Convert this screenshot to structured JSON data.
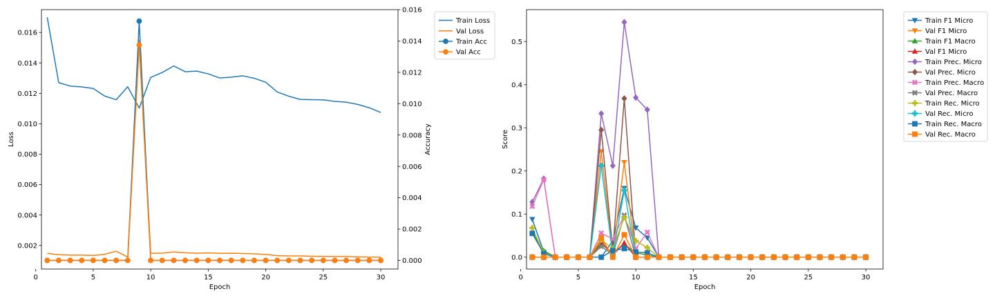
{
  "chart_data": [
    {
      "type": "line",
      "title": "",
      "xlabel": "Epoch",
      "ylabel": "Loss",
      "ylabel_right": "Accuracy",
      "x": [
        1,
        2,
        3,
        4,
        5,
        6,
        7,
        8,
        9,
        10,
        11,
        12,
        13,
        14,
        15,
        16,
        17,
        18,
        19,
        20,
        21,
        22,
        23,
        24,
        25,
        26,
        27,
        28,
        29,
        30
      ],
      "xlim": [
        0.5,
        31.5
      ],
      "ylim": [
        0.00045,
        0.0175
      ],
      "ylim_right": [
        -0.00055,
        0.016
      ],
      "xticks": [
        "0",
        "5",
        "10",
        "15",
        "20",
        "25",
        "30"
      ],
      "yticks_left": [
        "0.002",
        "0.004",
        "0.006",
        "0.008",
        "0.010",
        "0.012",
        "0.014",
        "0.016"
      ],
      "yticks_right": [
        "0.000",
        "0.002",
        "0.004",
        "0.006",
        "0.008",
        "0.010",
        "0.012",
        "0.014",
        "0.016"
      ],
      "grid": false,
      "legend_position": "outside-upper-right",
      "series": [
        {
          "name": "Train Loss",
          "axis": "left",
          "color": "#1f77b4",
          "marker": "none",
          "values": [
            0.017,
            0.0127,
            0.01248,
            0.01242,
            0.01232,
            0.01182,
            0.01158,
            0.01243,
            0.01103,
            0.01305,
            0.01337,
            0.0138,
            0.01342,
            0.01346,
            0.01328,
            0.01301,
            0.01306,
            0.01315,
            0.01299,
            0.01273,
            0.01209,
            0.01181,
            0.0116,
            0.01158,
            0.01157,
            0.01147,
            0.01142,
            0.01127,
            0.01105,
            0.01074
          ]
        },
        {
          "name": "Val Loss",
          "axis": "left",
          "color": "#ff7f0e",
          "marker": "none",
          "values": [
            0.00148,
            0.00139,
            0.00136,
            0.00136,
            0.00134,
            0.00142,
            0.00162,
            0.00124,
            0.0155,
            0.00148,
            0.0015,
            0.00157,
            0.00152,
            0.00149,
            0.00151,
            0.00148,
            0.00149,
            0.00147,
            0.00145,
            0.00141,
            0.00133,
            0.00131,
            0.00131,
            0.00129,
            0.00128,
            0.00127,
            0.00127,
            0.00125,
            0.00124,
            0.00123
          ]
        },
        {
          "name": "Train Acc",
          "axis": "right",
          "color": "#1f77b4",
          "marker": "circle",
          "values": [
            0,
            0,
            0,
            0,
            0,
            0,
            0,
            0,
            0.01527,
            0,
            0,
            0,
            0,
            0,
            0,
            0,
            0,
            0,
            0,
            0,
            0,
            0,
            0,
            0,
            0,
            0,
            0,
            0,
            0,
            0
          ]
        },
        {
          "name": "Val Acc",
          "axis": "right",
          "color": "#ff7f0e",
          "marker": "circle",
          "values": [
            0,
            0,
            0,
            0,
            0,
            0,
            0,
            0,
            0.01374,
            0,
            0,
            0,
            0,
            0,
            0,
            0,
            0,
            0,
            0,
            0,
            0,
            0,
            0,
            0,
            0,
            0,
            0,
            0,
            0,
            0
          ]
        }
      ]
    },
    {
      "type": "line",
      "title": "",
      "xlabel": "Epoch",
      "ylabel": "Score",
      "x": [
        1,
        2,
        3,
        4,
        5,
        6,
        7,
        8,
        9,
        10,
        11,
        12,
        13,
        14,
        15,
        16,
        17,
        18,
        19,
        20,
        21,
        22,
        23,
        24,
        25,
        26,
        27,
        28,
        29,
        30
      ],
      "xlim": [
        0.5,
        31.5
      ],
      "ylim": [
        -0.0275,
        0.574
      ],
      "xticks": [
        "0",
        "5",
        "10",
        "15",
        "20",
        "25",
        "30"
      ],
      "yticks": [
        "0.0",
        "0.1",
        "0.2",
        "0.3",
        "0.4",
        "0.5"
      ],
      "grid": false,
      "legend_position": "outside-upper-right",
      "series": [
        {
          "name": "Train F1 Micro",
          "color": "#1f77b4",
          "marker": "tri_down",
          "values": [
            0.088,
            0.012,
            0,
            0,
            0,
            0,
            0,
            0.038,
            0.16,
            0.068,
            0.045,
            0,
            0,
            0,
            0,
            0,
            0,
            0,
            0,
            0,
            0,
            0,
            0,
            0,
            0,
            0,
            0,
            0,
            0,
            0
          ]
        },
        {
          "name": "Val F1 Micro",
          "color": "#ff7f0e",
          "marker": "tri_down",
          "values": [
            0,
            0,
            0,
            0,
            0,
            0,
            0.245,
            0.008,
            0.22,
            0,
            0,
            0,
            0,
            0,
            0,
            0,
            0,
            0,
            0,
            0,
            0,
            0,
            0,
            0,
            0,
            0,
            0,
            0,
            0,
            0
          ]
        },
        {
          "name": "Train F1 Macro",
          "color": "#2ca02c",
          "marker": "tri_up",
          "values": [
            0.058,
            0.015,
            0,
            0,
            0,
            0,
            0.03,
            0.01,
            0.03,
            0.01,
            0.005,
            0,
            0,
            0,
            0,
            0,
            0,
            0,
            0,
            0,
            0,
            0,
            0,
            0,
            0,
            0,
            0,
            0,
            0,
            0
          ]
        },
        {
          "name": "Val F1 Micro",
          "color": "#d62728",
          "marker": "tri_up",
          "values": [
            0,
            0,
            0,
            0,
            0,
            0,
            0.035,
            0.005,
            0.033,
            0,
            0,
            0,
            0,
            0,
            0,
            0,
            0,
            0,
            0,
            0,
            0,
            0,
            0,
            0,
            0,
            0,
            0,
            0,
            0,
            0
          ]
        },
        {
          "name": "Train Prec. Micro",
          "color": "#9467bd",
          "marker": "diamond",
          "values": [
            0.128,
            0.182,
            0,
            0,
            0,
            0,
            0.333,
            0.212,
            0.545,
            0.37,
            0.342,
            0,
            0,
            0,
            0,
            0,
            0,
            0,
            0,
            0,
            0,
            0,
            0,
            0,
            0,
            0,
            0,
            0,
            0,
            0
          ]
        },
        {
          "name": "Val Prec. Micro",
          "color": "#8c564b",
          "marker": "diamond",
          "values": [
            0,
            0,
            0,
            0,
            0,
            0,
            0.295,
            0.015,
            0.368,
            0,
            0,
            0,
            0,
            0,
            0,
            0,
            0,
            0,
            0,
            0,
            0,
            0,
            0,
            0,
            0,
            0,
            0,
            0,
            0,
            0
          ]
        },
        {
          "name": "Train Prec. Macro",
          "color": "#e377c2",
          "marker": "x",
          "values": [
            0.118,
            0.18,
            0,
            0,
            0,
            0,
            0.056,
            0.042,
            0.097,
            0.02,
            0.058,
            0,
            0,
            0,
            0,
            0,
            0,
            0,
            0,
            0,
            0,
            0,
            0,
            0,
            0,
            0,
            0,
            0,
            0,
            0
          ]
        },
        {
          "name": "Val Prec. Macro",
          "color": "#7f7f7f",
          "marker": "x",
          "values": [
            0,
            0,
            0,
            0,
            0,
            0,
            0.025,
            0.005,
            0.097,
            0,
            0,
            0,
            0,
            0,
            0,
            0,
            0,
            0,
            0,
            0,
            0,
            0,
            0,
            0,
            0,
            0,
            0,
            0,
            0,
            0
          ]
        },
        {
          "name": "Train Rec. Micro",
          "color": "#bcbd22",
          "marker": "plus",
          "values": [
            0.068,
            0.01,
            0,
            0,
            0,
            0,
            0.04,
            0.02,
            0.092,
            0.038,
            0.022,
            0,
            0,
            0,
            0,
            0,
            0,
            0,
            0,
            0,
            0,
            0,
            0,
            0,
            0,
            0,
            0,
            0,
            0,
            0
          ]
        },
        {
          "name": "Val Rec. Micro",
          "color": "#17becf",
          "marker": "plus",
          "values": [
            0,
            0,
            0,
            0,
            0,
            0,
            0.212,
            0.005,
            0.155,
            0,
            0,
            0,
            0,
            0,
            0,
            0,
            0,
            0,
            0,
            0,
            0,
            0,
            0,
            0,
            0,
            0,
            0,
            0,
            0,
            0
          ]
        },
        {
          "name": "Train Rec. Macro",
          "color": "#1f77b4",
          "marker": "square",
          "values": [
            0.055,
            0.008,
            0,
            0,
            0,
            0,
            0,
            0.015,
            0.02,
            0.012,
            0.01,
            0,
            0,
            0,
            0,
            0,
            0,
            0,
            0,
            0,
            0,
            0,
            0,
            0,
            0,
            0,
            0,
            0,
            0,
            0
          ]
        },
        {
          "name": "Val Rec. Macro",
          "color": "#ff7f0e",
          "marker": "square",
          "values": [
            0,
            0,
            0,
            0,
            0,
            0,
            0.045,
            0,
            0.052,
            0,
            0,
            0,
            0,
            0,
            0,
            0,
            0,
            0,
            0,
            0,
            0,
            0,
            0,
            0,
            0,
            0,
            0,
            0,
            0,
            0
          ]
        }
      ]
    }
  ]
}
